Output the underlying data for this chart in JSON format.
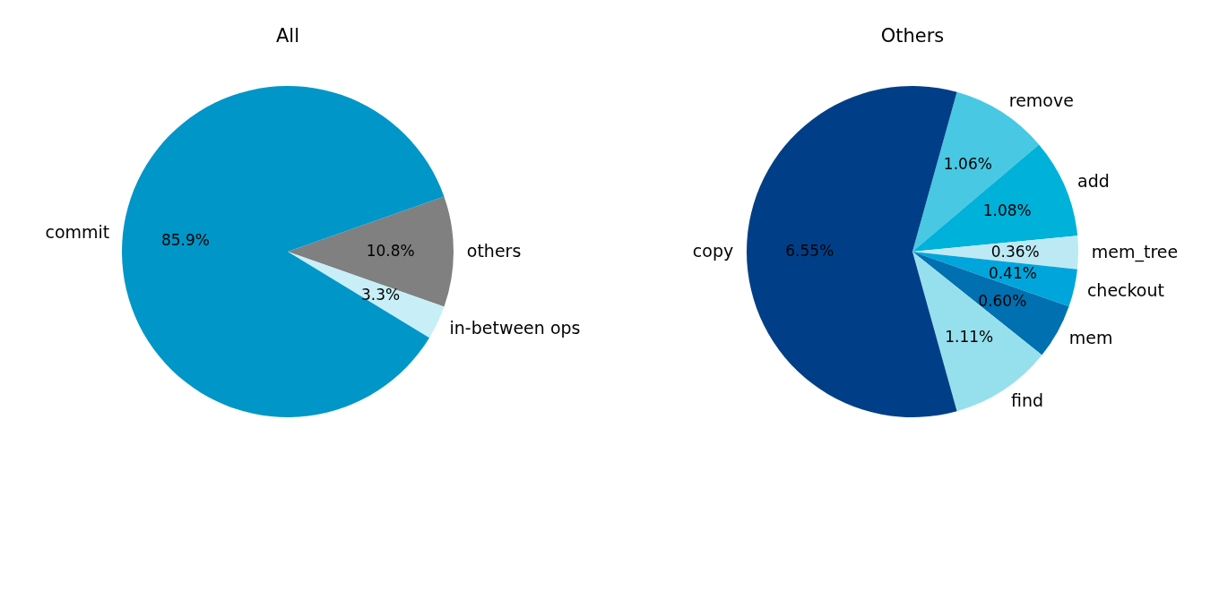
{
  "chart_data": [
    {
      "type": "pie",
      "title": "All",
      "categories": [
        "others",
        "in-between ops",
        "commit"
      ],
      "values": [
        10.8,
        3.3,
        85.9
      ],
      "value_labels": [
        "10.8%",
        "3.3%",
        "85.9%"
      ],
      "colors": [
        "#808080",
        "#c8eef7",
        "#0096c8"
      ]
    },
    {
      "type": "pie",
      "title": "Others",
      "categories": [
        "remove",
        "add",
        "mem_tree",
        "checkout",
        "mem",
        "find",
        "copy"
      ],
      "values": [
        1.06,
        1.08,
        0.36,
        0.41,
        0.6,
        1.11,
        6.55
      ],
      "value_labels": [
        "1.06%",
        "1.08%",
        "0.36%",
        "0.41%",
        "0.60%",
        "1.11%",
        "6.55%"
      ],
      "colors": [
        "#48c8e3",
        "#00b1d9",
        "#bde9f5",
        "#00a6db",
        "#0070b0",
        "#96e0ee",
        "#003f87"
      ]
    }
  ]
}
